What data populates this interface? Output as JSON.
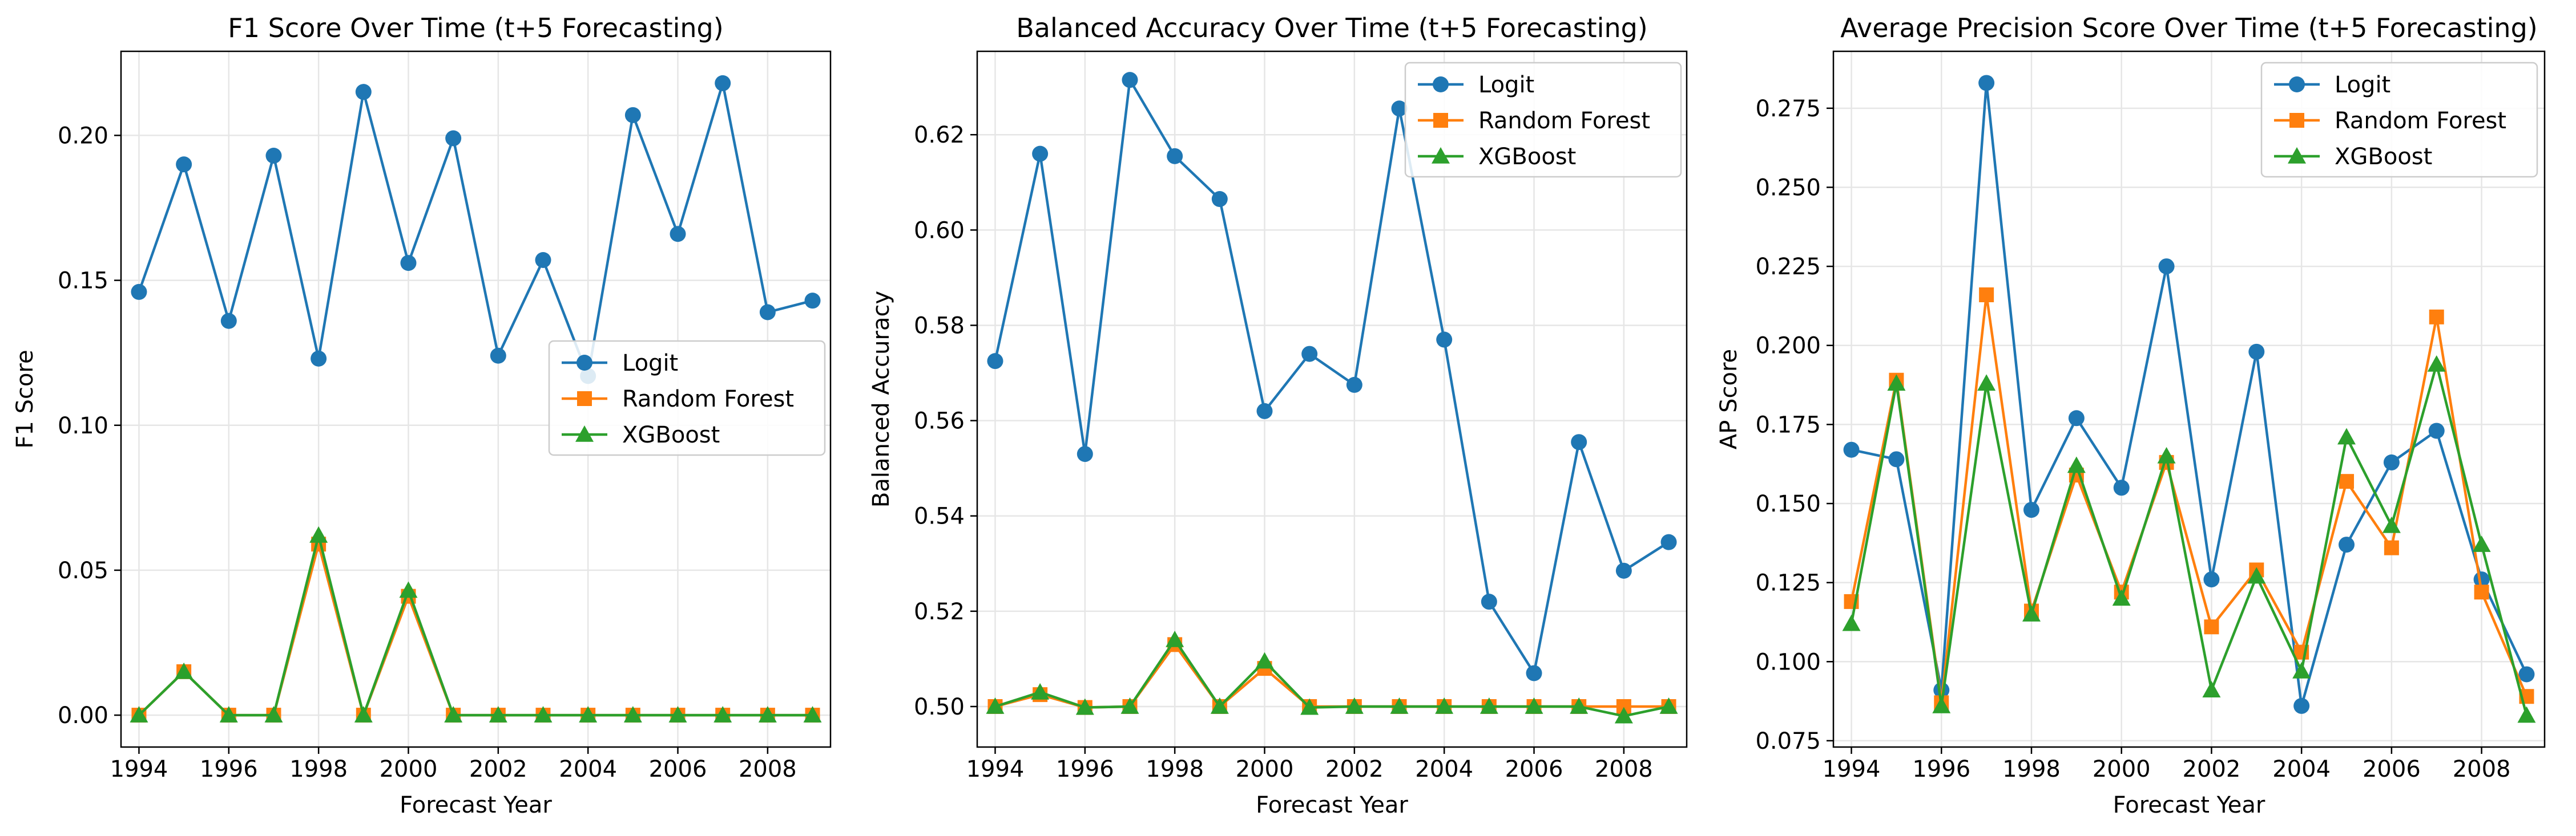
{
  "figure": {
    "series_styles": [
      {
        "name": "Logit",
        "color": "#1f77b4",
        "marker": "circle"
      },
      {
        "name": "Random Forest",
        "color": "#ff7f0e",
        "marker": "square"
      },
      {
        "name": "XGBoost",
        "color": "#2ca02c",
        "marker": "triangle"
      }
    ]
  },
  "chart_data": [
    {
      "type": "line",
      "title": "F1 Score Over Time (t+5 Forecasting)",
      "xlabel": "Forecast Year",
      "ylabel": "F1 Score",
      "xlim": [
        1993.6,
        2009.4
      ],
      "ylim": [
        -0.011,
        0.229
      ],
      "xticks": [
        1994,
        1996,
        1998,
        2000,
        2002,
        2004,
        2006,
        2008
      ],
      "yticks": [
        0.0,
        0.05,
        0.1,
        0.15,
        0.2
      ],
      "ytick_labels": [
        "0.00",
        "0.05",
        "0.10",
        "0.15",
        "0.20"
      ],
      "grid": true,
      "legend": "center-right",
      "x": [
        1994,
        1995,
        1996,
        1997,
        1998,
        1999,
        2000,
        2001,
        2002,
        2003,
        2004,
        2005,
        2006,
        2007,
        2008,
        2009
      ],
      "series": [
        {
          "name": "Logit",
          "values": [
            0.146,
            0.19,
            0.136,
            0.193,
            0.123,
            0.215,
            0.156,
            0.199,
            0.124,
            0.157,
            0.117,
            0.207,
            0.166,
            0.218,
            0.139,
            0.143
          ]
        },
        {
          "name": "Random Forest",
          "values": [
            0.0,
            0.015,
            0.0,
            0.0,
            0.059,
            0.0,
            0.041,
            0.0,
            0.0,
            0.0,
            0.0,
            0.0,
            0.0,
            0.0,
            0.0,
            0.0
          ]
        },
        {
          "name": "XGBoost",
          "values": [
            0.0,
            0.015,
            0.0,
            0.0,
            0.062,
            0.0,
            0.043,
            0.0,
            0.0,
            0.0,
            0.0,
            0.0,
            0.0,
            0.0,
            0.0,
            0.0
          ]
        }
      ]
    },
    {
      "type": "line",
      "title": "Balanced Accuracy Over Time (t+5 Forecasting)",
      "xlabel": "Forecast Year",
      "ylabel": "Balanced Accuracy",
      "xlim": [
        1993.6,
        2009.4
      ],
      "ylim": [
        0.4915,
        0.6375
      ],
      "xticks": [
        1994,
        1996,
        1998,
        2000,
        2002,
        2004,
        2006,
        2008
      ],
      "yticks": [
        0.5,
        0.52,
        0.54,
        0.56,
        0.58,
        0.6,
        0.62
      ],
      "ytick_labels": [
        "0.50",
        "0.52",
        "0.54",
        "0.56",
        "0.58",
        "0.60",
        "0.62"
      ],
      "grid": true,
      "legend": "top-right",
      "x": [
        1994,
        1995,
        1996,
        1997,
        1998,
        1999,
        2000,
        2001,
        2002,
        2003,
        2004,
        2005,
        2006,
        2007,
        2008,
        2009
      ],
      "series": [
        {
          "name": "Logit",
          "values": [
            0.5725,
            0.616,
            0.553,
            0.6315,
            0.6155,
            0.6065,
            0.562,
            0.574,
            0.5675,
            0.6255,
            0.577,
            0.522,
            0.507,
            0.5555,
            0.5285,
            0.5345
          ]
        },
        {
          "name": "Random Forest",
          "values": [
            0.5,
            0.5025,
            0.4998,
            0.5,
            0.513,
            0.5,
            0.508,
            0.5,
            0.5,
            0.5,
            0.5,
            0.5,
            0.5,
            0.5,
            0.5,
            0.5
          ]
        },
        {
          "name": "XGBoost",
          "values": [
            0.5,
            0.503,
            0.4998,
            0.5,
            0.514,
            0.5,
            0.5095,
            0.4998,
            0.5,
            0.5,
            0.5,
            0.5,
            0.5,
            0.5,
            0.498,
            0.5
          ]
        }
      ]
    },
    {
      "type": "line",
      "title": "Average Precision Score Over Time (t+5 Forecasting)",
      "xlabel": "Forecast Year",
      "ylabel": "AP Score",
      "xlim": [
        1993.6,
        2009.4
      ],
      "ylim": [
        0.073,
        0.293
      ],
      "xticks": [
        1994,
        1996,
        1998,
        2000,
        2002,
        2004,
        2006,
        2008
      ],
      "yticks": [
        0.075,
        0.1,
        0.125,
        0.15,
        0.175,
        0.2,
        0.225,
        0.25,
        0.275
      ],
      "ytick_labels": [
        "0.075",
        "0.100",
        "0.125",
        "0.150",
        "0.175",
        "0.200",
        "0.225",
        "0.250",
        "0.275"
      ],
      "grid": true,
      "legend": "top-right",
      "x": [
        1994,
        1995,
        1996,
        1997,
        1998,
        1999,
        2000,
        2001,
        2002,
        2003,
        2004,
        2005,
        2006,
        2007,
        2008,
        2009
      ],
      "series": [
        {
          "name": "Logit",
          "values": [
            0.167,
            0.164,
            0.091,
            0.283,
            0.148,
            0.177,
            0.155,
            0.225,
            0.126,
            0.198,
            0.086,
            0.137,
            0.163,
            0.173,
            0.126,
            0.096
          ]
        },
        {
          "name": "Random Forest",
          "values": [
            0.119,
            0.189,
            0.087,
            0.216,
            0.116,
            0.159,
            0.122,
            0.163,
            0.111,
            0.129,
            0.103,
            0.157,
            0.136,
            0.209,
            0.122,
            0.089
          ]
        },
        {
          "name": "XGBoost",
          "values": [
            0.112,
            0.188,
            0.086,
            0.188,
            0.115,
            0.162,
            0.12,
            0.165,
            0.091,
            0.127,
            0.097,
            0.171,
            0.143,
            0.194,
            0.137,
            0.083
          ]
        }
      ]
    }
  ]
}
